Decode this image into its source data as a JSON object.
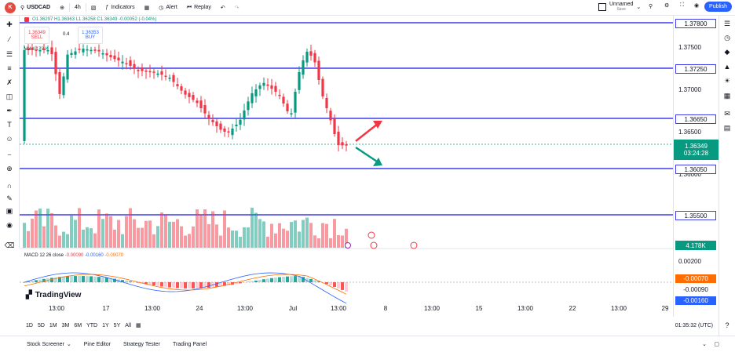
{
  "topbar": {
    "avatar": "K",
    "symbol": "USDCAD",
    "interval": "4h",
    "indicators": "Indicators",
    "alert": "Alert",
    "replay": "Replay",
    "layout_name": "Unnamed",
    "layout_status": "Save",
    "publish": "Publish"
  },
  "legend": {
    "ohlc": "O1.36297  H1.36363  L1.36258  C1.36349  -0.00052 (-0.04%)"
  },
  "trade": {
    "sell_price": "1.36349",
    "sell_label": "SELL",
    "spread": "0.4",
    "buy_price": "1.36353",
    "buy_label": "BUY"
  },
  "volume_legend": {
    "label": "Vol",
    "value": "4.178 K"
  },
  "macd_legend": {
    "label": "MACD 12 26 close",
    "v1": "-0.00090",
    "v2": "-0.00160",
    "v3": "-0.00070"
  },
  "price_axis": {
    "ticks": [
      "1.37500",
      "1.37000",
      "1.36500",
      "1.36000"
    ],
    "lines": [
      "1.37800",
      "1.37250",
      "1.36650",
      "1.36050",
      "1.35500"
    ],
    "current_price": "1.36349",
    "countdown": "03:24:28",
    "volume_value": "4.178K",
    "macd_tick": "0.00200",
    "macd_values": [
      "-0.00070",
      "-0.00090",
      "-0.00160"
    ]
  },
  "time_axis": [
    "13:00",
    "17",
    "13:00",
    "24",
    "13:00",
    "Jul",
    "13:00",
    "8",
    "13:00",
    "15",
    "13:00",
    "22",
    "13:00",
    "29"
  ],
  "ranges": [
    "1D",
    "5D",
    "1M",
    "3M",
    "6M",
    "YTD",
    "1Y",
    "5Y",
    "All"
  ],
  "clock": "01:35:32 (UTC)",
  "panels": [
    "Stock Screener",
    "Pine Editor",
    "Strategy Tester",
    "Trading Panel"
  ],
  "logo": "TradingView",
  "colors": {
    "up": "#089981",
    "down": "#f23645",
    "line": "#3c3cf0",
    "accent": "#2962ff"
  }
}
